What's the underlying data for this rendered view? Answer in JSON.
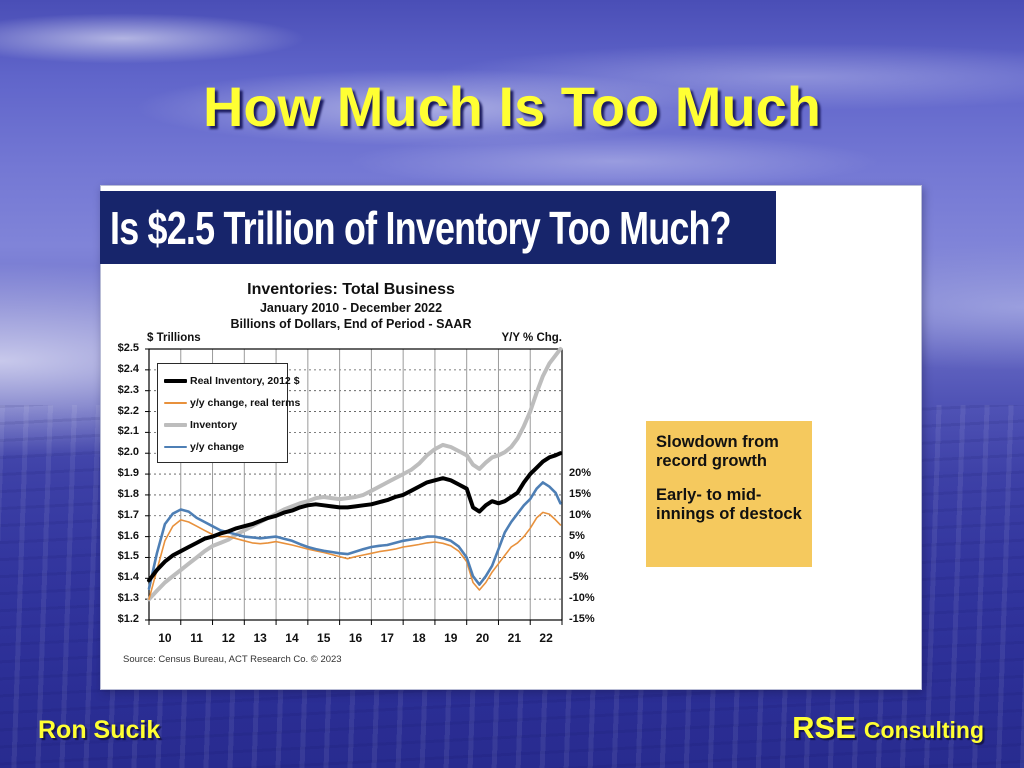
{
  "slide": {
    "title": "How Much Is Too Much",
    "footer_left": "Ron Sucik",
    "footer_brand": "RSE",
    "footer_brand_suffix": "Consulting"
  },
  "panel": {
    "header": "Is $2.5 Trillion of Inventory Too Much?",
    "header_bg": "#17256b",
    "source": "Source: Census Bureau, ACT Research Co. © 2023",
    "callout": {
      "line1": "Slowdown from record growth",
      "line2": "Early- to mid-innings of destock",
      "bg": "#F5C95E"
    }
  },
  "chart_data": {
    "type": "line",
    "title": "Inventories: Total Business",
    "subtitle1": "January 2010 - December 2022",
    "subtitle2": "Billions of Dollars, End of Period - SAAR",
    "left_axis_label": "$ Trillions",
    "right_axis_label": "Y/Y % Chg.",
    "x_range": [
      2010,
      2023
    ],
    "left_ylim": [
      1.2,
      2.5
    ],
    "left_ticks": [
      "$2.5",
      "$2.4",
      "$2.3",
      "$2.2",
      "$2.1",
      "$2.0",
      "$1.9",
      "$1.8",
      "$1.7",
      "$1.6",
      "$1.5",
      "$1.4",
      "$1.3",
      "$1.2"
    ],
    "left_tick_values": [
      2.5,
      2.4,
      2.3,
      2.2,
      2.1,
      2.0,
      1.9,
      1.8,
      1.7,
      1.6,
      1.5,
      1.4,
      1.3,
      1.2
    ],
    "right_ticks": [
      "20%",
      "15%",
      "10%",
      "5%",
      "0%",
      "-5%",
      "-10%",
      "-15%"
    ],
    "right_tick_values": [
      20,
      15,
      10,
      5,
      0,
      -5,
      -10,
      -15
    ],
    "right_axis_map": {
      "zero_pct_at_dollar": 1.5,
      "pct_per_tenth_dollar": 5
    },
    "x_tick_labels": [
      "10",
      "11",
      "12",
      "13",
      "14",
      "15",
      "16",
      "17",
      "18",
      "19",
      "20",
      "21",
      "22"
    ],
    "grid": "horizontal dashed, vertical solid per year",
    "legend_position": "top-left inside plot",
    "x": [
      2010.0,
      2010.25,
      2010.5,
      2010.75,
      2011.0,
      2011.25,
      2011.5,
      2011.75,
      2012.0,
      2012.25,
      2012.5,
      2012.75,
      2013.0,
      2013.25,
      2013.5,
      2013.75,
      2014.0,
      2014.25,
      2014.5,
      2014.75,
      2015.0,
      2015.25,
      2015.5,
      2015.75,
      2016.0,
      2016.25,
      2016.5,
      2016.75,
      2017.0,
      2017.25,
      2017.5,
      2017.75,
      2018.0,
      2018.25,
      2018.5,
      2018.75,
      2019.0,
      2019.25,
      2019.5,
      2019.75,
      2020.0,
      2020.2,
      2020.4,
      2020.6,
      2020.8,
      2021.0,
      2021.2,
      2021.4,
      2021.6,
      2021.8,
      2022.0,
      2022.2,
      2022.4,
      2022.6,
      2022.8,
      2022.95
    ],
    "series": [
      {
        "id": "real-inventory",
        "name": "Real Inventory, 2012 $",
        "color": "#000000",
        "axis": "left",
        "stroke_width": 4,
        "z": 3,
        "values": [
          1.39,
          1.44,
          1.48,
          1.51,
          1.53,
          1.55,
          1.57,
          1.59,
          1.6,
          1.615,
          1.625,
          1.64,
          1.65,
          1.66,
          1.675,
          1.69,
          1.7,
          1.715,
          1.725,
          1.74,
          1.75,
          1.755,
          1.75,
          1.745,
          1.74,
          1.74,
          1.745,
          1.75,
          1.755,
          1.765,
          1.775,
          1.79,
          1.8,
          1.82,
          1.84,
          1.86,
          1.87,
          1.88,
          1.87,
          1.85,
          1.83,
          1.74,
          1.72,
          1.75,
          1.77,
          1.76,
          1.77,
          1.79,
          1.81,
          1.86,
          1.9,
          1.93,
          1.96,
          1.98,
          1.99,
          2.0
        ]
      },
      {
        "id": "yy-change-real",
        "name": "y/y change, real terms",
        "color": "#E8913C",
        "axis": "right",
        "stroke_width": 1.6,
        "z": 1,
        "values": [
          -10,
          -3,
          4,
          7.5,
          9,
          8.5,
          7.5,
          6.5,
          5.5,
          5,
          5,
          4.5,
          4,
          3.5,
          3.3,
          3.5,
          3.8,
          3.4,
          3,
          2.5,
          2,
          1.6,
          1.2,
          0.7,
          0.2,
          -0.3,
          0.2,
          0.6,
          1,
          1.4,
          1.7,
          2,
          2.5,
          2.8,
          3.1,
          3.5,
          3.7,
          3.4,
          2.8,
          1.5,
          -1,
          -6,
          -7.8,
          -6,
          -3.5,
          -1.5,
          0.5,
          2.5,
          3.5,
          5,
          7,
          9.5,
          10.8,
          10.4,
          9,
          7.8
        ]
      },
      {
        "id": "inventory",
        "name": "Inventory",
        "color": "#BDBDBD",
        "axis": "left",
        "stroke_width": 4,
        "z": 0,
        "values": [
          1.3,
          1.34,
          1.38,
          1.41,
          1.44,
          1.47,
          1.5,
          1.53,
          1.555,
          1.57,
          1.585,
          1.61,
          1.63,
          1.65,
          1.67,
          1.69,
          1.71,
          1.73,
          1.745,
          1.76,
          1.77,
          1.785,
          1.79,
          1.785,
          1.78,
          1.785,
          1.79,
          1.8,
          1.82,
          1.84,
          1.86,
          1.88,
          1.9,
          1.92,
          1.95,
          1.99,
          2.02,
          2.04,
          2.03,
          2.01,
          1.99,
          1.945,
          1.925,
          1.955,
          1.98,
          1.99,
          2.005,
          2.03,
          2.07,
          2.13,
          2.2,
          2.29,
          2.37,
          2.43,
          2.47,
          2.5
        ]
      },
      {
        "id": "yy-change",
        "name": "y/y change",
        "color": "#4E7FB5",
        "axis": "right",
        "stroke_width": 2.6,
        "z": 2,
        "values": [
          -7.5,
          1,
          8,
          10.5,
          11.5,
          11,
          9.5,
          8.5,
          7.5,
          6.5,
          6,
          5.5,
          5,
          4.8,
          4.6,
          4.8,
          5,
          4.5,
          4,
          3.2,
          2.5,
          2,
          1.6,
          1.3,
          1,
          0.8,
          1.4,
          2,
          2.5,
          2.8,
          3,
          3.5,
          4,
          4.3,
          4.6,
          5,
          5,
          4.6,
          4,
          2.6,
          0,
          -4.5,
          -6.5,
          -4.5,
          -2,
          2,
          6,
          8.5,
          10.5,
          12.5,
          14,
          16.5,
          18,
          17,
          15.5,
          13
        ]
      }
    ]
  }
}
